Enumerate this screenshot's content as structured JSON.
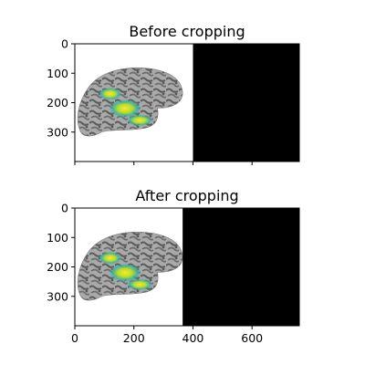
{
  "chart_data": [
    {
      "type": "image",
      "title": "Before cropping",
      "xlabel": "",
      "ylabel": "",
      "xlim": [
        0,
        760
      ],
      "ylim": [
        400,
        0
      ],
      "xticks": [
        0,
        200,
        400,
        600
      ],
      "xtick_labels_shown": false,
      "yticks": [
        0,
        100,
        200,
        300
      ],
      "ytick_labels": [
        "0",
        "100",
        "200",
        "300"
      ],
      "content_width": 400,
      "image_description": "inflated cortical surface, lateral view, with highlighted activation",
      "fill_color": "#000000"
    },
    {
      "type": "image",
      "title": "After cropping",
      "xlabel": "",
      "ylabel": "",
      "xlim": [
        0,
        760
      ],
      "ylim": [
        400,
        0
      ],
      "xticks": [
        0,
        200,
        400,
        600
      ],
      "xtick_labels": [
        "0",
        "200",
        "400",
        "600"
      ],
      "yticks": [
        0,
        100,
        200,
        300
      ],
      "ytick_labels": [
        "0",
        "100",
        "200",
        "300"
      ],
      "content_width": 365,
      "image_description": "inflated cortical surface, lateral view, with highlighted activation",
      "fill_color": "#000000"
    }
  ],
  "colors": {
    "brain_light": "#a9a9a9",
    "brain_dark": "#5b5b5b",
    "activation_low": "#3bb3a5",
    "activation_mid": "#7fd34e",
    "activation_high": "#fde725",
    "background": "#ffffff"
  }
}
